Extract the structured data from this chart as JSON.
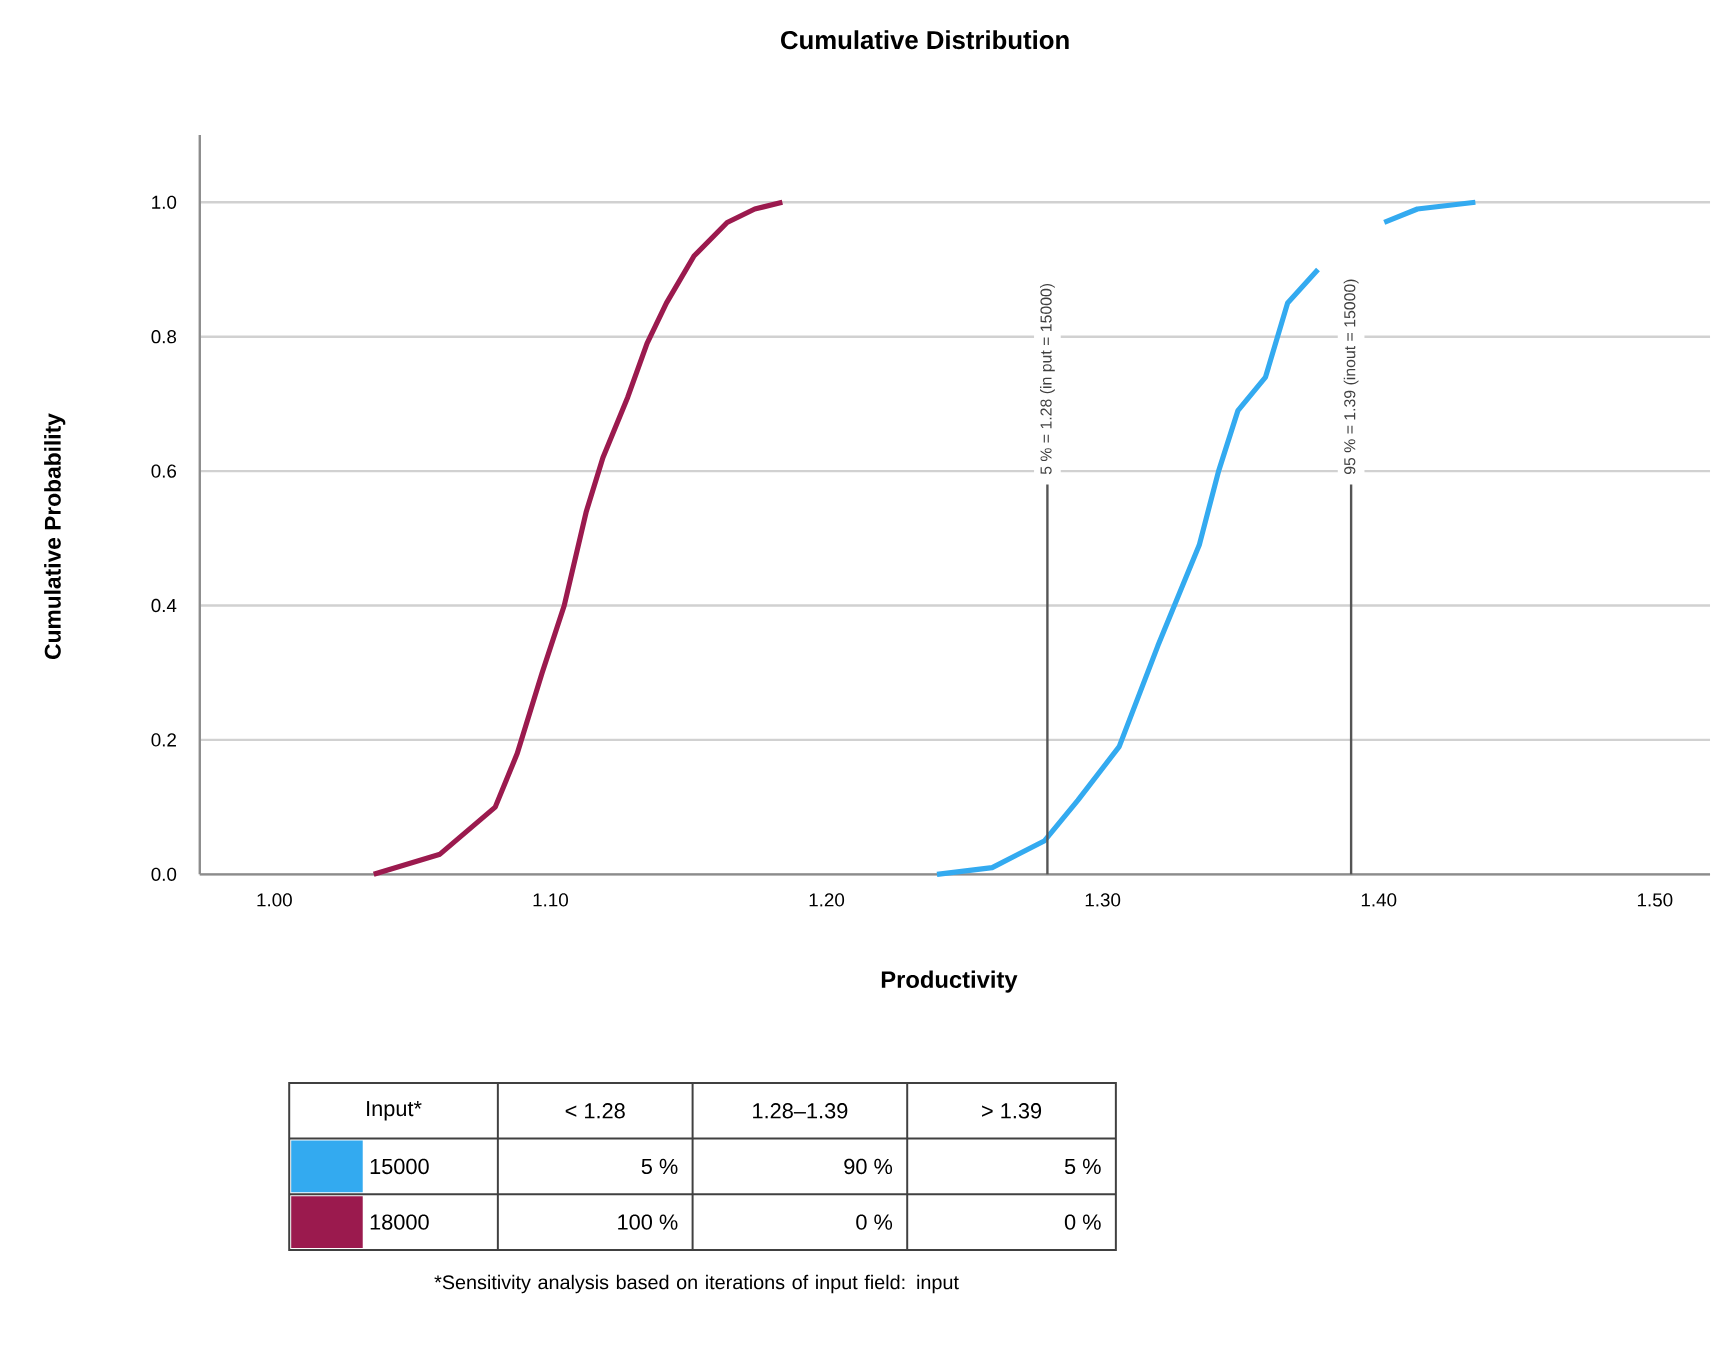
{
  "chart_data": {
    "type": "line",
    "title": "Cumulative Distribution",
    "xlabel": "Productivity",
    "ylabel": "Cumulative Probability",
    "xlim": [
      0.973,
      1.52
    ],
    "ylim": [
      0,
      1.1
    ],
    "xticks": [
      {
        "value": 1.0,
        "label": "1.00"
      },
      {
        "value": 1.1,
        "label": "1.10"
      },
      {
        "value": 1.2,
        "label": "1.20"
      },
      {
        "value": 1.3,
        "label": "1.30"
      },
      {
        "value": 1.4,
        "label": "1.40"
      },
      {
        "value": 1.5,
        "label": "1.50"
      }
    ],
    "yticks": [
      {
        "value": 0,
        "label": "0.0"
      },
      {
        "value": 0.2,
        "label": "0.2"
      },
      {
        "value": 0.4,
        "label": "0.4"
      },
      {
        "value": 0.6,
        "label": "0.6"
      },
      {
        "value": 0.8,
        "label": "0.8"
      },
      {
        "value": 1.0,
        "label": "1.0"
      }
    ],
    "grid": "y",
    "legend": "bottom",
    "legend_title": "Input*",
    "line_style": "solid",
    "marker": "none",
    "series": [
      {
        "name": "15000",
        "color": "#33aaf0",
        "x": [
          1.24,
          1.26,
          1.279,
          1.291,
          1.306,
          1.32,
          1.328,
          1.335,
          1.342,
          1.349,
          1.359,
          1.367,
          1.378,
          1.39,
          1.402,
          1.414,
          1.435
        ],
        "values": [
          0,
          0.01,
          0.05,
          0.11,
          0.19,
          0.34,
          0.42,
          0.49,
          0.6,
          0.69,
          0.74,
          0.85,
          0.9,
          null,
          0.97,
          0.99,
          1.0
        ]
      },
      {
        "name": "18000",
        "color": "#9b1a4e",
        "x": [
          1.036,
          1.06,
          1.08,
          1.088,
          1.097,
          1.105,
          1.113,
          1.119,
          1.128,
          1.135,
          1.142,
          1.152,
          1.164,
          1.174,
          1.184
        ],
        "values": [
          0,
          0.03,
          0.1,
          0.18,
          0.3,
          0.4,
          0.54,
          0.62,
          0.71,
          0.79,
          0.85,
          0.92,
          0.97,
          0.99,
          1.0
        ]
      }
    ],
    "ref_lines": [
      {
        "axis": "x",
        "value": 1.28,
        "label": "5 % = 1.28 (in put = 15000)",
        "color": "#555555"
      },
      {
        "axis": "x",
        "value": 1.39,
        "label": "95 % = 1.39 (inout = 15000)",
        "color": "#555555"
      }
    ],
    "annotations": [
      "< 1.28",
      "1.28–1.39",
      "> 1.39",
      "5 %",
      "90 %",
      "5 %",
      "100 %",
      "0 %",
      "0 %",
      "*Sensitivity analysis based on iterations of input field: input"
    ]
  }
}
